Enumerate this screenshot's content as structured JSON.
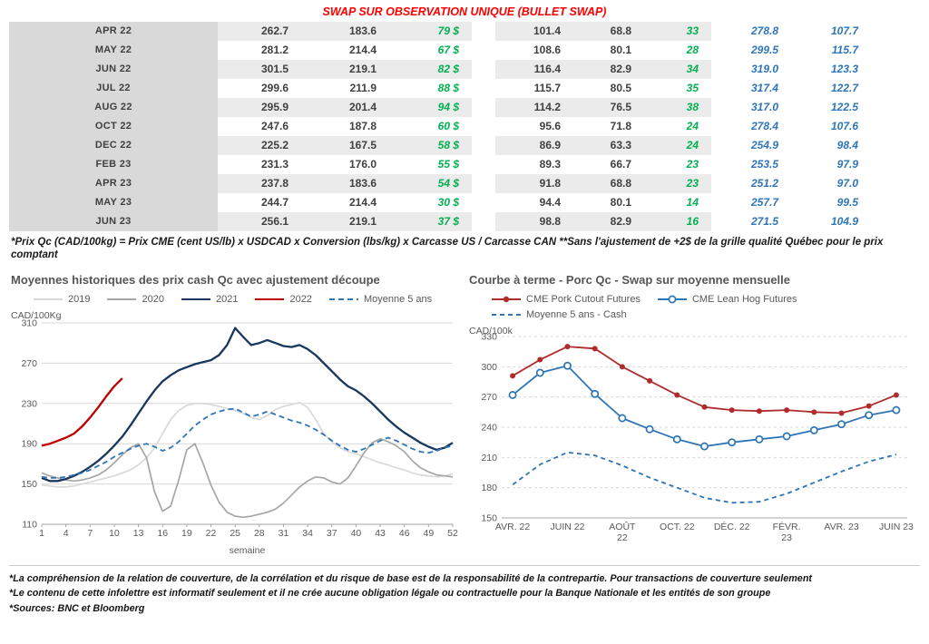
{
  "page_title": "SWAP SUR OBSERVATION UNIQUE (BULLET SWAP)",
  "colors": {
    "title_red": "#FF0000",
    "table_green": "#00B050",
    "table_blue": "#2E75B6",
    "label_gray": "#D9D9D9"
  },
  "table": {
    "rows": [
      [
        "APR 22",
        "262.7",
        "183.6",
        "79 $",
        "101.4",
        "68.8",
        "33",
        "278.8",
        "107.7"
      ],
      [
        "MAY 22",
        "281.2",
        "214.4",
        "67 $",
        "108.6",
        "80.1",
        "28",
        "299.5",
        "115.7"
      ],
      [
        "JUN 22",
        "301.5",
        "219.1",
        "82 $",
        "116.4",
        "82.9",
        "34",
        "319.0",
        "123.3"
      ],
      [
        "JUL 22",
        "299.6",
        "211.9",
        "88 $",
        "115.7",
        "80.5",
        "35",
        "317.4",
        "122.7"
      ],
      [
        "AUG 22",
        "295.9",
        "201.4",
        "94 $",
        "114.2",
        "76.5",
        "38",
        "317.0",
        "122.5"
      ],
      [
        "OCT 22",
        "247.6",
        "187.8",
        "60 $",
        "95.6",
        "71.8",
        "24",
        "278.4",
        "107.6"
      ],
      [
        "DEC 22",
        "225.2",
        "167.5",
        "58 $",
        "86.9",
        "63.3",
        "24",
        "254.9",
        "98.4"
      ],
      [
        "FEB 23",
        "231.3",
        "176.0",
        "55 $",
        "89.3",
        "66.7",
        "23",
        "253.5",
        "97.9"
      ],
      [
        "APR 23",
        "237.8",
        "183.6",
        "54 $",
        "91.8",
        "68.8",
        "23",
        "251.2",
        "97.0"
      ],
      [
        "MAY 23",
        "244.7",
        "214.4",
        "30 $",
        "94.4",
        "80.1",
        "14",
        "257.7",
        "99.5"
      ],
      [
        "JUN 23",
        "256.1",
        "219.1",
        "37 $",
        "98.8",
        "82.9",
        "16",
        "271.5",
        "104.9"
      ]
    ]
  },
  "table_footnote": "*Prix Qc (CAD/100kg) = Prix CME (cent US/lb) x USDCAD x Conversion (lbs/kg) x Carcasse US / Carcasse CAN **Sans l'ajustement de +2$ de la grille qualité Québec pour le prix comptant",
  "chart_data": [
    {
      "type": "line",
      "title": "Moyennes historiques des prix cash Qc avec ajustement découpe",
      "ylabel": "CAD/100Kg",
      "xlabel": "semaine",
      "ylim": [
        110,
        310
      ],
      "yticks": [
        110,
        150,
        190,
        230,
        270,
        310
      ],
      "xticks": [
        1,
        4,
        7,
        10,
        13,
        16,
        19,
        22,
        25,
        28,
        31,
        34,
        37,
        40,
        43,
        46,
        49,
        52
      ],
      "legend_position": "top",
      "grid": true,
      "series": [
        {
          "name": "2019",
          "color": "#d9d9d9",
          "width": 1.7,
          "values": [
            149,
            148,
            147,
            147,
            148,
            150,
            152,
            154,
            156,
            158,
            161,
            164,
            169,
            176,
            186,
            200,
            214,
            223,
            228,
            230,
            230,
            229,
            227,
            225,
            223,
            220,
            216,
            214,
            218,
            224,
            227,
            229,
            231,
            226,
            214,
            200,
            192,
            186,
            182,
            180,
            177,
            174,
            171,
            169,
            166,
            164,
            161,
            159,
            158,
            157,
            158,
            160
          ]
        },
        {
          "name": "2020",
          "color": "#a6a6a6",
          "width": 1.7,
          "values": [
            161,
            158,
            156,
            154,
            153,
            154,
            156,
            159,
            164,
            171,
            179,
            186,
            190,
            176,
            142,
            123,
            128,
            154,
            184,
            190,
            171,
            149,
            132,
            122,
            118,
            117,
            118,
            120,
            122,
            125,
            131,
            139,
            147,
            153,
            157,
            156,
            152,
            150,
            156,
            168,
            181,
            191,
            195,
            192,
            188,
            182,
            173,
            166,
            162,
            159,
            158,
            157
          ]
        },
        {
          "name": "2021",
          "color": "#17375e",
          "width": 2.3,
          "values": [
            156,
            153,
            153,
            155,
            158,
            162,
            167,
            173,
            180,
            188,
            197,
            208,
            220,
            232,
            243,
            252,
            258,
            263,
            266,
            269,
            271,
            273,
            278,
            288,
            305,
            296,
            288,
            290,
            293,
            290,
            287,
            286,
            288,
            284,
            278,
            270,
            262,
            254,
            247,
            243,
            237,
            230,
            222,
            214,
            207,
            201,
            196,
            191,
            187,
            184,
            186,
            191
          ]
        },
        {
          "name": "2022",
          "color": "#c00000",
          "width": 2.3,
          "values": [
            188,
            190,
            193,
            196,
            200,
            207,
            216,
            226,
            237,
            247,
            255
          ]
        },
        {
          "name": "Moyenne 5 ans",
          "color": "#2e75b6",
          "width": 1.8,
          "dash": "6,4",
          "values": [
            157,
            156,
            156,
            157,
            159,
            161,
            164,
            168,
            172,
            177,
            181,
            185,
            188,
            190,
            187,
            183,
            186,
            192,
            200,
            208,
            214,
            219,
            222,
            224,
            225,
            221,
            217,
            219,
            222,
            219,
            216,
            213,
            211,
            208,
            204,
            199,
            193,
            188,
            184,
            182,
            185,
            189,
            193,
            196,
            193,
            189,
            185,
            182,
            181,
            183,
            186,
            188
          ]
        }
      ]
    },
    {
      "type": "line",
      "title": "Courbe à terme - Porc Qc - Swap sur moyenne mensuelle",
      "ylabel": "CAD/100k",
      "xlabel": "",
      "ylim": [
        150,
        330
      ],
      "yticks": [
        150,
        180,
        210,
        240,
        270,
        300,
        330
      ],
      "xtick_labels": [
        {
          "i": 0,
          "l": "AVR. 22"
        },
        {
          "i": 2,
          "l": "JUIN 22"
        },
        {
          "i": 4,
          "l": "AOÛT\n22"
        },
        {
          "i": 6,
          "l": "OCT. 22"
        },
        {
          "i": 8,
          "l": "DÉC. 22"
        },
        {
          "i": 10,
          "l": "FÉVR.\n23"
        },
        {
          "i": 12,
          "l": "AVR. 23"
        },
        {
          "i": 14,
          "l": "JUIN 23"
        }
      ],
      "legend_position": "top",
      "grid": true,
      "series": [
        {
          "name": "CME Pork Cutout Futures",
          "color": "#b02b2b",
          "width": 1.8,
          "marker": "dot",
          "values": [
            291,
            307,
            320,
            318,
            300,
            286,
            272,
            260,
            257,
            256,
            257,
            255,
            254,
            261,
            272
          ]
        },
        {
          "name": "CME Lean Hog Futures",
          "color": "#2e75b6",
          "width": 1.8,
          "marker": "circle",
          "values": [
            272,
            294,
            301,
            273,
            249,
            238,
            228,
            221,
            225,
            228,
            231,
            237,
            243,
            252,
            257
          ]
        },
        {
          "name": "Moyenne 5 ans - Cash",
          "color": "#2e75b6",
          "width": 1.8,
          "dash": "5,4",
          "values": [
            183,
            203,
            215,
            212,
            202,
            190,
            180,
            170,
            165,
            166,
            174,
            185,
            196,
            206,
            213
          ]
        }
      ]
    }
  ],
  "footnotes": [
    "*La compréhension de la relation de couverture, de la corrélation et du risque de base est de la responsabilité de la contrepartie. Pour transactions de couverture seulement",
    "*Le contenu de cette infolettre est informatif seulement et il ne crée aucune obligation légale ou contractuelle pour la Banque Nationale et les entités de son groupe",
    "*Sources: BNC et Bloomberg"
  ]
}
